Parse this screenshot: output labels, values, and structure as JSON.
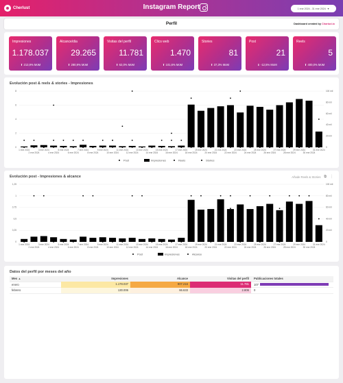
{
  "header": {
    "logo_text": "Cherlust",
    "title": "Instagram Report",
    "date_range": "1 ene 2024 - 31 ene 2024",
    "date_caret": "▼"
  },
  "perfil": {
    "title": "Perfil",
    "credit_prefix": "Dashboard created by ",
    "credit_brand": "Chartud.io"
  },
  "kpis": [
    {
      "label": "Impresiones",
      "value": "1.178.037",
      "change": "⬆ 213,9% MoM"
    },
    {
      "label": "Alcance/dia",
      "value": "29.265",
      "change": "⬆ 280,9% MoM"
    },
    {
      "label": "Visitas del perfil",
      "value": "11.781",
      "change": "⬆ 62,0% MoM"
    },
    {
      "label": "Clics web",
      "value": "1.470",
      "change": "⬆ 101,6% MoM"
    },
    {
      "label": "Stories",
      "value": "81",
      "change": "⬆ 37,3% MoM"
    },
    {
      "label": "Post",
      "value": "21",
      "change": "⬇ -12,5% MoM"
    },
    {
      "label": "Reels",
      "value": "5",
      "change": "⬆ 400,0% MoM"
    }
  ],
  "chart1": {
    "title": "Evolución post & reels & stories - Impresiones"
  },
  "chart2": {
    "title": "Evolución post  - Impresiones & alcance",
    "toolbar_label": "Añade Reels & Stories",
    "export_icon": "export-icon",
    "menu_icon": "more-vert-icon"
  },
  "colors": {
    "post": "#3b4aa3",
    "impresiones": "#f7d874",
    "reels": "#b52a89",
    "stories": "#7b3fb0",
    "alcance": "#f29b34"
  },
  "chart_data": [
    {
      "type": "line",
      "title": "Evolución post & reels & stories - Impresiones",
      "x": [
        "1 ene 2024",
        "2 ene 2024",
        "3 ene 2024",
        "4 ene 2024",
        "5 ene 2024",
        "6 ene 2024",
        "7 ene 2024",
        "8 ene 2024",
        "9 ene 2024",
        "10 ene 2024",
        "11 ene 2024",
        "12 ene 2024",
        "13 ene 2024",
        "14 ene 2024",
        "15 ene 2024",
        "16 ene 2024",
        "17 ene 2024",
        "18 ene 2024",
        "19 ene 2024",
        "20 ene 2024",
        "21 ene 2024",
        "22 ene 2024",
        "23 ene 2024",
        "24 ene 2024",
        "25 ene 2024",
        "26 ene 2024",
        "27 ene 2024",
        "28 ene 2024",
        "29 ene 2024",
        "30 ene 2024",
        "31 ene 2024"
      ],
      "x_ticks_top": [
        "1 ene 2024",
        "3 ene 2024",
        "5 ene 2024",
        "7 ene 2024",
        "9 ene 2024",
        "11 ene 2024",
        "13 ene 2024",
        "15 ene 2024",
        "17 ene 2024",
        "19 ene 2024",
        "21 ene 2024",
        "23 ene 2024",
        "25 ene 2024",
        "27 ene 2024",
        "29 ene 2024",
        "31 ene 2024"
      ],
      "x_ticks_bottom": [
        "2 ene 2024",
        "4 ene 2024",
        "6 ene 2024",
        "8 ene 2024",
        "10 ene 2024",
        "12 ene 2024",
        "14 ene 2024",
        "16 ene 2024",
        "18 ene 2024",
        "20 ene 2024",
        "22 ene 2024",
        "24 ene 2024",
        "26 ene 2024",
        "28 ene 2024",
        "30 ene 2024"
      ],
      "y_left_ticks": [
        "0",
        "2",
        "4",
        "6",
        "8"
      ],
      "y_right_ticks": [
        "0",
        "20 mil",
        "40 mil",
        "60 mil",
        "80 mil",
        "100 mil"
      ],
      "ylim_left": [
        0,
        8
      ],
      "ylim_right": [
        0,
        100000
      ],
      "series": [
        {
          "name": "Post",
          "axis": "left",
          "values": [
            0,
            1,
            0,
            1,
            0,
            1,
            1,
            0,
            1,
            1,
            0,
            1,
            0,
            0,
            1,
            1,
            1,
            1,
            1,
            1,
            1,
            1,
            1,
            1,
            1,
            1,
            1,
            1,
            1,
            1,
            1
          ]
        },
        {
          "name": "Impresiones",
          "axis": "right",
          "kind": "bar",
          "values": [
            1500,
            3500,
            4000,
            3000,
            2500,
            2000,
            4500,
            2500,
            3000,
            3000,
            2000,
            2500,
            1500,
            3000,
            2500,
            2000,
            3000,
            76000,
            65000,
            70000,
            73000,
            75000,
            62000,
            74000,
            72000,
            67000,
            75000,
            80000,
            86000,
            83000,
            28000
          ]
        },
        {
          "name": "Reels",
          "axis": "left",
          "values": [
            0,
            0,
            0,
            0,
            0,
            0,
            0,
            0,
            0,
            0,
            0,
            0,
            0,
            0,
            0,
            0,
            0,
            0,
            0,
            1,
            0,
            0,
            0,
            1,
            0,
            0,
            0,
            0,
            0,
            0,
            0
          ]
        },
        {
          "name": "Stories",
          "axis": "left",
          "values": [
            1,
            0,
            0,
            6,
            1,
            0,
            0,
            0,
            0,
            1,
            3,
            8,
            0,
            0,
            0,
            2,
            0,
            7,
            0,
            0,
            1,
            7,
            8,
            0,
            0,
            0,
            0,
            0,
            0,
            0,
            4
          ]
        }
      ]
    },
    {
      "type": "line",
      "title": "Evolución post  - Impresiones & alcance",
      "x": [
        "1 ene 2024",
        "2 ene 2024",
        "3 ene 2024",
        "4 ene 2024",
        "5 ene 2024",
        "6 ene 2024",
        "7 ene 2024",
        "8 ene 2024",
        "9 ene 2024",
        "10 ene 2024",
        "11 ene 2024",
        "12 ene 2024",
        "13 ene 2024",
        "14 ene 2024",
        "15 ene 2024",
        "16 ene 2024",
        "17 ene 2024",
        "18 ene 2024",
        "19 ene 2024",
        "20 ene 2024",
        "21 ene 2024",
        "22 ene 2024",
        "23 ene 2024",
        "24 ene 2024",
        "25 ene 2024",
        "26 ene 2024",
        "27 ene 2024",
        "28 ene 2024",
        "29 ene 2024",
        "30 ene 2024",
        "31 ene 2024"
      ],
      "x_ticks_top": [
        "1 ene 2024",
        "3 ene 2024",
        "5 ene 2024",
        "7 ene 2024",
        "9 ene 2024",
        "11 ene 2024",
        "13 ene 2024",
        "15 ene 2024",
        "17 ene 2024",
        "19 ene 2024",
        "21 ene 2024",
        "23 ene 2024",
        "25 ene 2024",
        "27 ene 2024",
        "29 ene 2024",
        "31 ene 2024"
      ],
      "x_ticks_bottom": [
        "2 ene 2024",
        "4 ene 2024",
        "6 ene 2024",
        "8 ene 2024",
        "10 ene 2024",
        "12 ene 2024",
        "14 ene 2024",
        "16 ene 2024",
        "18 ene 2024",
        "20 ene 2024",
        "22 ene 2024",
        "24 ene 2024",
        "26 ene 2024",
        "28 ene 2024",
        "30 ene 2024"
      ],
      "y_left_ticks": [
        "0",
        "0,25",
        "0,5",
        "0,75",
        "1",
        "1,25"
      ],
      "y_right_ticks": [
        "0",
        "20 mil",
        "40 mil",
        "60 mil",
        "80 mil",
        "100 mil"
      ],
      "ylim_left": [
        0,
        1.25
      ],
      "ylim_right": [
        0,
        100000
      ],
      "series": [
        {
          "name": "Post",
          "axis": "left",
          "values": [
            0,
            1,
            1,
            0,
            0,
            0,
            1,
            1,
            0,
            0,
            0,
            1,
            1,
            0,
            0,
            0,
            0,
            1,
            1,
            0,
            1,
            1,
            0,
            1,
            0,
            1,
            0,
            1,
            1,
            1,
            0.5
          ]
        },
        {
          "name": "Impresiones",
          "axis": "right",
          "kind": "bar",
          "values": [
            5000,
            9000,
            10000,
            8000,
            5000,
            4000,
            9000,
            7000,
            8000,
            7000,
            6000,
            7000,
            5000,
            6000,
            5000,
            4000,
            7000,
            73000,
            56000,
            57000,
            74000,
            57000,
            65000,
            57000,
            62000,
            66000,
            55000,
            70000,
            66000,
            71000,
            29000
          ]
        },
        {
          "name": "Alcance",
          "axis": "right",
          "values": [
            2000,
            4000,
            4000,
            4000,
            2000,
            2000,
            4000,
            3000,
            4000,
            3000,
            3000,
            4000,
            2000,
            3000,
            2000,
            2000,
            3000,
            44000,
            36000,
            55000,
            36000,
            58000,
            58000,
            44000,
            58000,
            48000,
            58000,
            48000,
            58000,
            54000,
            20000
          ]
        }
      ]
    }
  ],
  "table": {
    "title": "Datos del perfil por meses del año",
    "headers": {
      "mes": "Mes",
      "sort": "▲",
      "impresiones": "Impresiones",
      "alcance": "Alcance",
      "visitas": "Visitas del perfil",
      "publicaciones": "Publicaciones totales"
    },
    "rows": [
      {
        "mes": "enero",
        "impresiones": "1.178.037",
        "alcance": "907.216",
        "visitas": "11.781",
        "publicaciones": "107",
        "pub_value": 107
      },
      {
        "mes": "febrero",
        "impresiones": "130.006",
        "alcance": "66.633",
        "visitas": "2.806",
        "publicaciones": "0",
        "pub_value": 0
      }
    ]
  }
}
